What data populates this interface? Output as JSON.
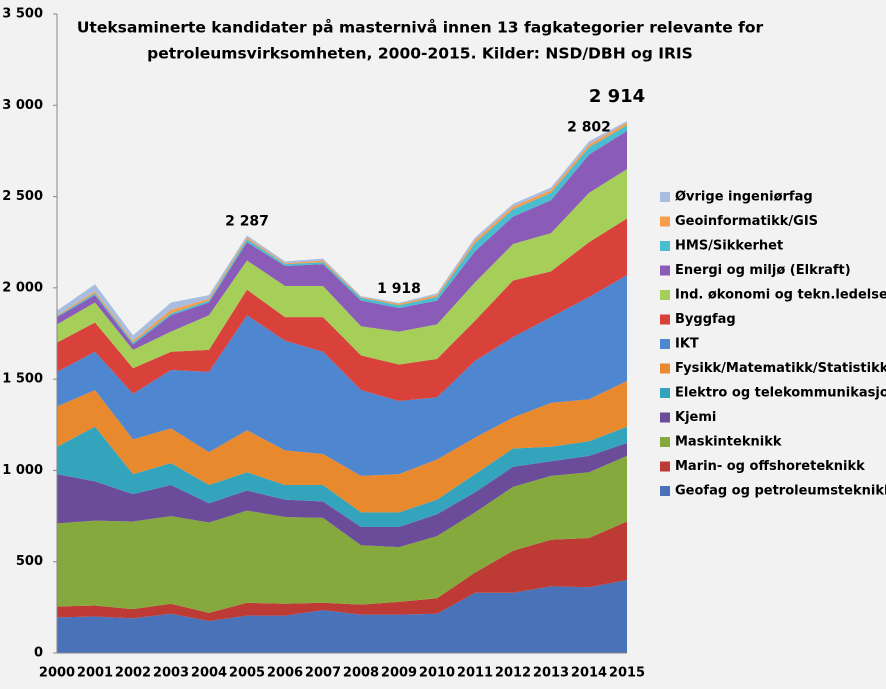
{
  "chart_data": {
    "type": "stacked_area",
    "title": [
      "Uteksaminerte kandidater på masternivå innen 13 fagkategorier relevante for",
      "petroleumsvirksomheten, 2000-2015. Kilder: NSD/DBH og IRIS"
    ],
    "categories": [
      "2000",
      "2001",
      "2002",
      "2003",
      "2004",
      "2005",
      "2006",
      "2007",
      "2008",
      "2009",
      "2010",
      "2011",
      "2012",
      "2013",
      "2014",
      "2015"
    ],
    "series": [
      {
        "name": "Geofag og petroleumsteknikk",
        "color": "#4a72b8",
        "values": [
          195,
          200,
          190,
          215,
          175,
          205,
          205,
          235,
          210,
          210,
          215,
          330,
          330,
          365,
          360,
          400
        ]
      },
      {
        "name": "Marin- og offshoreteknikk",
        "color": "#be3a34",
        "values": [
          60,
          60,
          50,
          55,
          45,
          70,
          65,
          40,
          55,
          70,
          85,
          110,
          230,
          255,
          270,
          320
        ]
      },
      {
        "name": "Maskinteknikk",
        "color": "#86a93d",
        "values": [
          455,
          465,
          480,
          480,
          495,
          505,
          475,
          465,
          325,
          300,
          340,
          330,
          350,
          350,
          360,
          360
        ]
      },
      {
        "name": "Kjemi",
        "color": "#6b4c9a",
        "values": [
          270,
          215,
          150,
          170,
          105,
          110,
          95,
          90,
          100,
          110,
          120,
          110,
          110,
          80,
          90,
          70
        ]
      },
      {
        "name": "Elektro og telekommunikasjon",
        "color": "#34a4bc",
        "values": [
          150,
          300,
          110,
          120,
          100,
          100,
          80,
          90,
          80,
          80,
          80,
          100,
          100,
          80,
          80,
          90
        ]
      },
      {
        "name": "Fysikk/Matematikk/Statistikk",
        "color": "#e8892d",
        "values": [
          220,
          200,
          190,
          190,
          180,
          230,
          190,
          170,
          200,
          210,
          220,
          200,
          170,
          240,
          230,
          250
        ]
      },
      {
        "name": "IKT",
        "color": "#4f86d0",
        "values": [
          190,
          210,
          250,
          320,
          440,
          630,
          600,
          560,
          470,
          400,
          340,
          420,
          440,
          470,
          560,
          580
        ]
      },
      {
        "name": "Byggfag",
        "color": "#d9413b",
        "values": [
          160,
          160,
          140,
          100,
          120,
          140,
          130,
          190,
          190,
          200,
          210,
          220,
          310,
          250,
          300,
          310
        ]
      },
      {
        "name": "Ind. økonomi og tekn.ledelse",
        "color": "#a6cf5a",
        "values": [
          100,
          110,
          100,
          110,
          190,
          160,
          170,
          170,
          160,
          180,
          190,
          210,
          200,
          210,
          270,
          270
        ]
      },
      {
        "name": "Energi og miljø (Elkraft)",
        "color": "#8a5cb8",
        "values": [
          40,
          40,
          30,
          90,
          70,
          100,
          110,
          120,
          140,
          130,
          130,
          170,
          150,
          180,
          210,
          210
        ]
      },
      {
        "name": "HMS/Sikkerhet",
        "color": "#4bbdd1",
        "values": [
          5,
          10,
          10,
          10,
          10,
          15,
          10,
          10,
          15,
          15,
          20,
          45,
          40,
          40,
          40,
          30
        ]
      },
      {
        "name": "Geoinformatikk/GIS",
        "color": "#f59d4a",
        "values": [
          5,
          10,
          10,
          20,
          10,
          10,
          5,
          10,
          5,
          7,
          10,
          15,
          15,
          15,
          15,
          15
        ]
      },
      {
        "name": "Øvrige ingeniørfag",
        "color": "#a9bde0",
        "values": [
          25,
          40,
          30,
          40,
          20,
          12,
          10,
          10,
          5,
          6,
          10,
          15,
          15,
          15,
          17,
          9
        ]
      }
    ],
    "ylim": [
      0,
      3500
    ],
    "yticks": [
      0,
      500,
      {
        "value": 1000,
        "label": "1 000"
      },
      {
        "value": 1500,
        "label": "1 500"
      },
      {
        "value": 2000,
        "label": "2 000"
      },
      {
        "value": 2500,
        "label": "2 500"
      },
      {
        "value": 3000,
        "label": "3 000"
      },
      {
        "value": 3500,
        "label": "3 500"
      }
    ],
    "annotations": [
      {
        "x": "2005",
        "text": "2 287"
      },
      {
        "x": "2009",
        "text": "1 918"
      },
      {
        "x": "2014",
        "text": "2 802"
      },
      {
        "x": "2015",
        "text": "2 914"
      }
    ],
    "grid": false
  }
}
